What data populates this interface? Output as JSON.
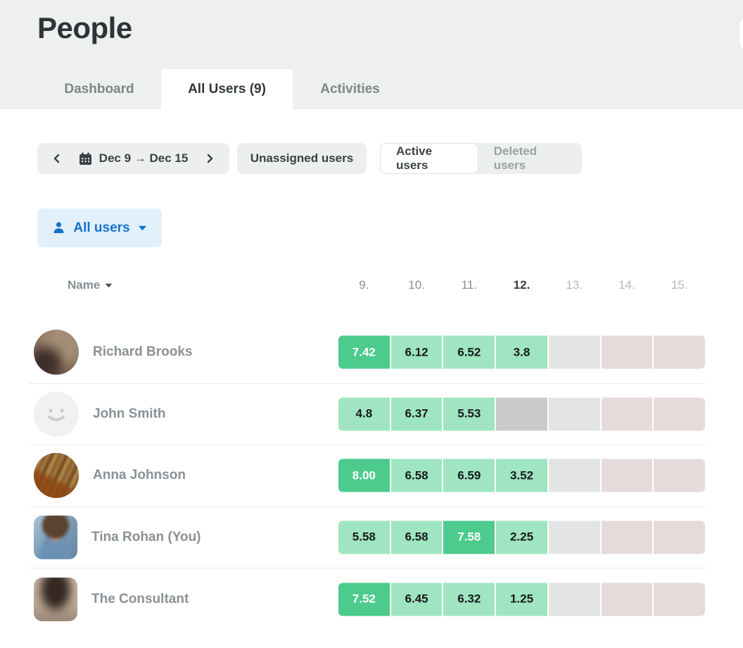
{
  "page": {
    "title": "People"
  },
  "tabs": [
    {
      "label": "Dashboard",
      "active": false
    },
    {
      "label": "All Users (9)",
      "active": true
    },
    {
      "label": "Activities",
      "active": false
    }
  ],
  "controls": {
    "date_nav": {
      "range_label": "Dec 9 → Dec 15"
    },
    "unassigned_button": "Unassigned users",
    "status_toggle": [
      {
        "label": "Active users",
        "active": true
      },
      {
        "label": "Deleted users",
        "active": false
      }
    ],
    "user_filter": {
      "label": "All users"
    }
  },
  "table": {
    "name_header": "Name",
    "day_headers": [
      {
        "label": "9.",
        "emphasis": "past"
      },
      {
        "label": "10.",
        "emphasis": "past"
      },
      {
        "label": "11.",
        "emphasis": "past"
      },
      {
        "label": "12.",
        "emphasis": "today"
      },
      {
        "label": "13.",
        "emphasis": "future"
      },
      {
        "label": "14.",
        "emphasis": "future"
      },
      {
        "label": "15.",
        "emphasis": "future"
      }
    ],
    "rows": [
      {
        "name": "Richard Brooks",
        "avatar": {
          "kind": "photo-blur-brown",
          "shape": "circle"
        },
        "cells": [
          {
            "value": "7.42",
            "type": "high"
          },
          {
            "value": "6.12",
            "type": "mid"
          },
          {
            "value": "6.52",
            "type": "mid"
          },
          {
            "value": "3.8",
            "type": "mid"
          },
          {
            "value": "",
            "type": "empty"
          },
          {
            "value": "",
            "type": "weekend"
          },
          {
            "value": "",
            "type": "weekend"
          }
        ]
      },
      {
        "name": "John Smith",
        "avatar": {
          "kind": "placeholder-smiley",
          "shape": "circle"
        },
        "cells": [
          {
            "value": "4.8",
            "type": "mid"
          },
          {
            "value": "6.37",
            "type": "mid"
          },
          {
            "value": "5.53",
            "type": "mid"
          },
          {
            "value": "",
            "type": "off"
          },
          {
            "value": "",
            "type": "empty"
          },
          {
            "value": "",
            "type": "weekend"
          },
          {
            "value": "",
            "type": "weekend"
          }
        ]
      },
      {
        "name": "Anna Johnson",
        "avatar": {
          "kind": "photo-wood",
          "shape": "circle"
        },
        "cells": [
          {
            "value": "8.00",
            "type": "high"
          },
          {
            "value": "6.58",
            "type": "mid"
          },
          {
            "value": "6.59",
            "type": "mid"
          },
          {
            "value": "3.52",
            "type": "mid"
          },
          {
            "value": "",
            "type": "empty"
          },
          {
            "value": "",
            "type": "weekend"
          },
          {
            "value": "",
            "type": "weekend"
          }
        ]
      },
      {
        "name": "Tina Rohan (You)",
        "avatar": {
          "kind": "photo-cartoon",
          "shape": "rounded"
        },
        "cells": [
          {
            "value": "5.58",
            "type": "mid"
          },
          {
            "value": "6.58",
            "type": "mid"
          },
          {
            "value": "7.58",
            "type": "high"
          },
          {
            "value": "2.25",
            "type": "mid"
          },
          {
            "value": "",
            "type": "empty"
          },
          {
            "value": "",
            "type": "weekend"
          },
          {
            "value": "",
            "type": "weekend"
          }
        ]
      },
      {
        "name": "The Consultant",
        "avatar": {
          "kind": "photo-blur-portrait",
          "shape": "rounded"
        },
        "cells": [
          {
            "value": "7.52",
            "type": "high"
          },
          {
            "value": "6.45",
            "type": "mid"
          },
          {
            "value": "6.32",
            "type": "mid"
          },
          {
            "value": "1.25",
            "type": "mid"
          },
          {
            "value": "",
            "type": "empty"
          },
          {
            "value": "",
            "type": "weekend"
          },
          {
            "value": "",
            "type": "weekend"
          }
        ]
      }
    ]
  },
  "colors": {
    "header_bg": "#eef0ef",
    "accent_green": "#4ccb8d",
    "light_green": "#9fe5c2",
    "empty_gray": "#e3e5e4",
    "off_gray": "#c9cbca",
    "weekend_pink": "#e5dbdb",
    "accent_blue": "#1273c6",
    "chip_blue_bg": "#e2f0fc"
  }
}
